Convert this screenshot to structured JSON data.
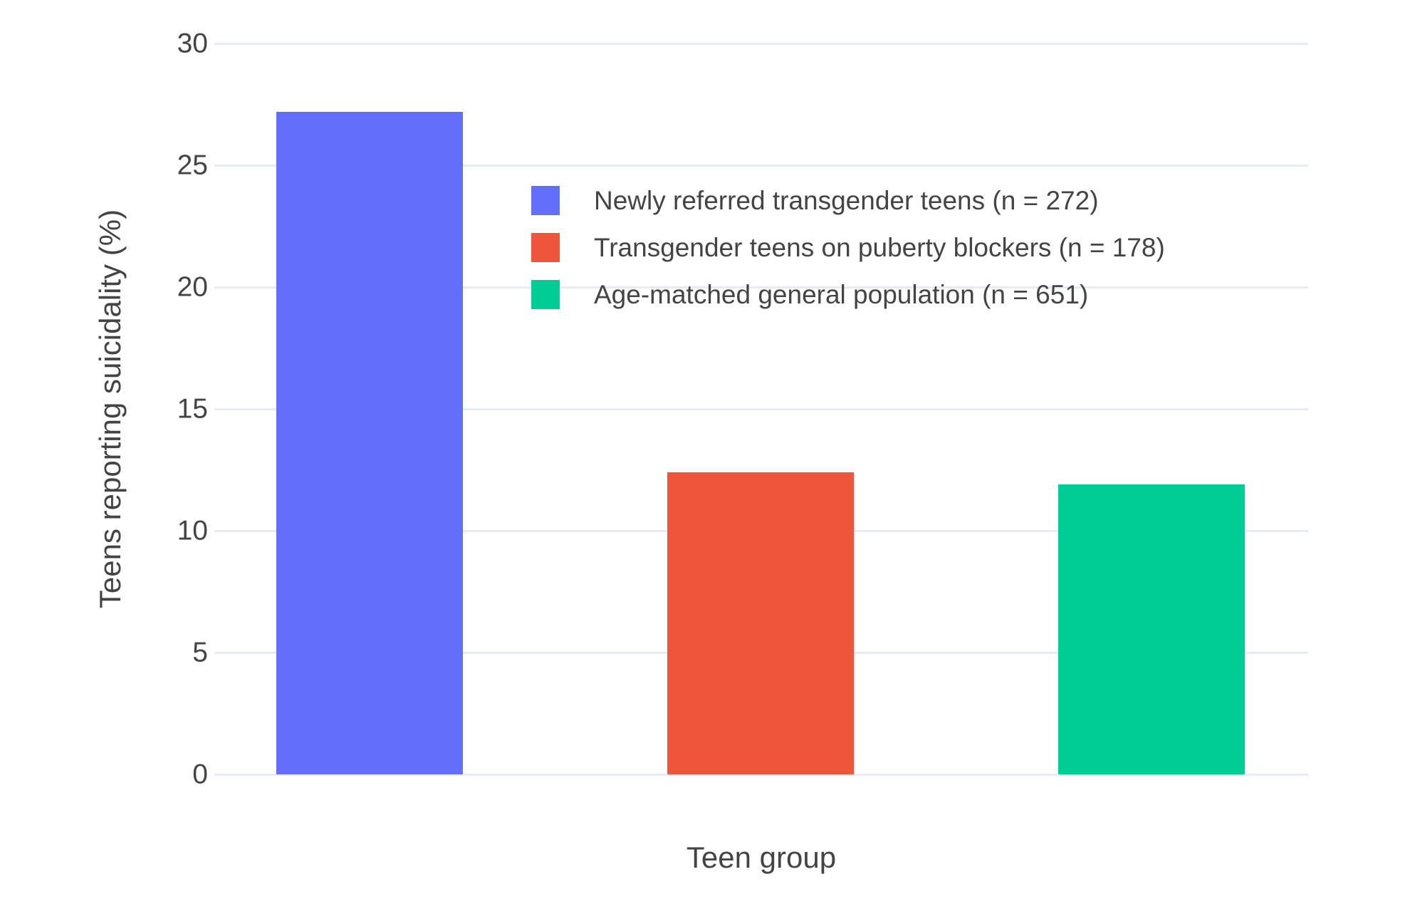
{
  "chart_data": {
    "type": "bar",
    "title": "",
    "xlabel": "Teen group",
    "ylabel": "Teens reporting suicidality (%)",
    "categories": [
      "Newly referred transgender teens (n = 272)",
      "Transgender teens on puberty blockers (n = 178)",
      "Age-matched general population (n = 651)"
    ],
    "values": [
      27.2,
      12.4,
      11.9
    ],
    "colors": [
      "#636efa",
      "#ef553b",
      "#00cc96"
    ],
    "ylim": [
      0,
      30
    ],
    "yticks": [
      0,
      5,
      10,
      15,
      20,
      25,
      30
    ],
    "grid": true,
    "background": "#ffffff",
    "gridline_color": "#e7ebf5",
    "text_color": "#444444",
    "legend_position": "inside-upper-center",
    "layout_hints": {
      "bar_center_fracs": [
        0.1419,
        0.4993,
        0.8568
      ],
      "bar_width_frac": 0.1706
    }
  }
}
